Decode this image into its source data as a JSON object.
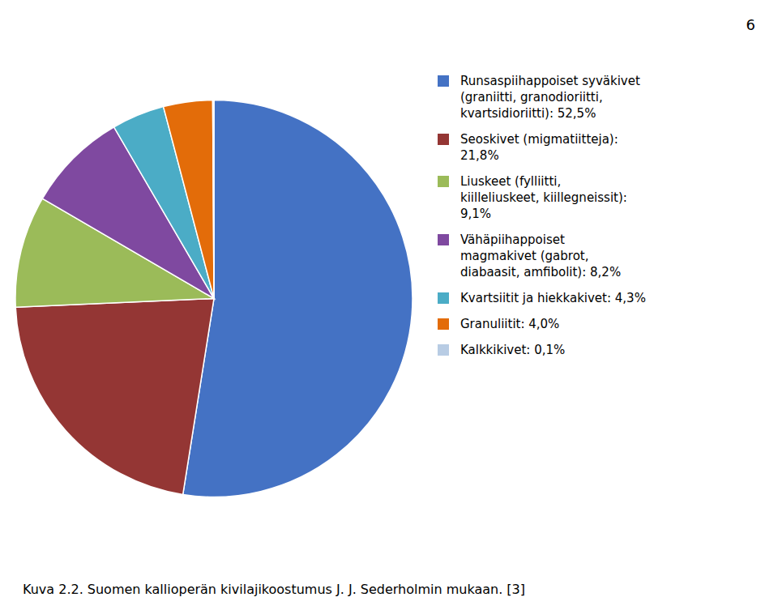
{
  "chart_data": {
    "type": "pie",
    "title": "Kuva 2.2. Suomen kallioperän kivilajikoostumus J. J. Sederholmin mukaan. [3]",
    "annotations": [
      "6"
    ],
    "categories": [
      "Runsaspiihappoiset syväkivet\n(graniitti, granodioriitti,\nkvartsidioriitti): 52,5%",
      "Seoskivet (migmatiitteja):\n21,8%",
      "Liuskeet (fylliitti,\nkiilleliuskeet, kiillegneissit):\n9,1%",
      "Vähäpiihappoiset\nmagmakivet (gabrot,\ndiabaasit, amfibolit): 8,2%",
      "Kvartsiitit ja hiekkakivet: 4,3%",
      "Granuliitit: 4,0%",
      "Kalkkikivet: 0,1%"
    ],
    "values": [
      52.5,
      21.8,
      9.1,
      8.2,
      4.3,
      4.0,
      0.1
    ],
    "colors": [
      "#4472C4",
      "#943634",
      "#9BBB59",
      "#7F49A0",
      "#4BACC6",
      "#E36C09",
      "#B8CCE4"
    ],
    "legend": "right"
  }
}
